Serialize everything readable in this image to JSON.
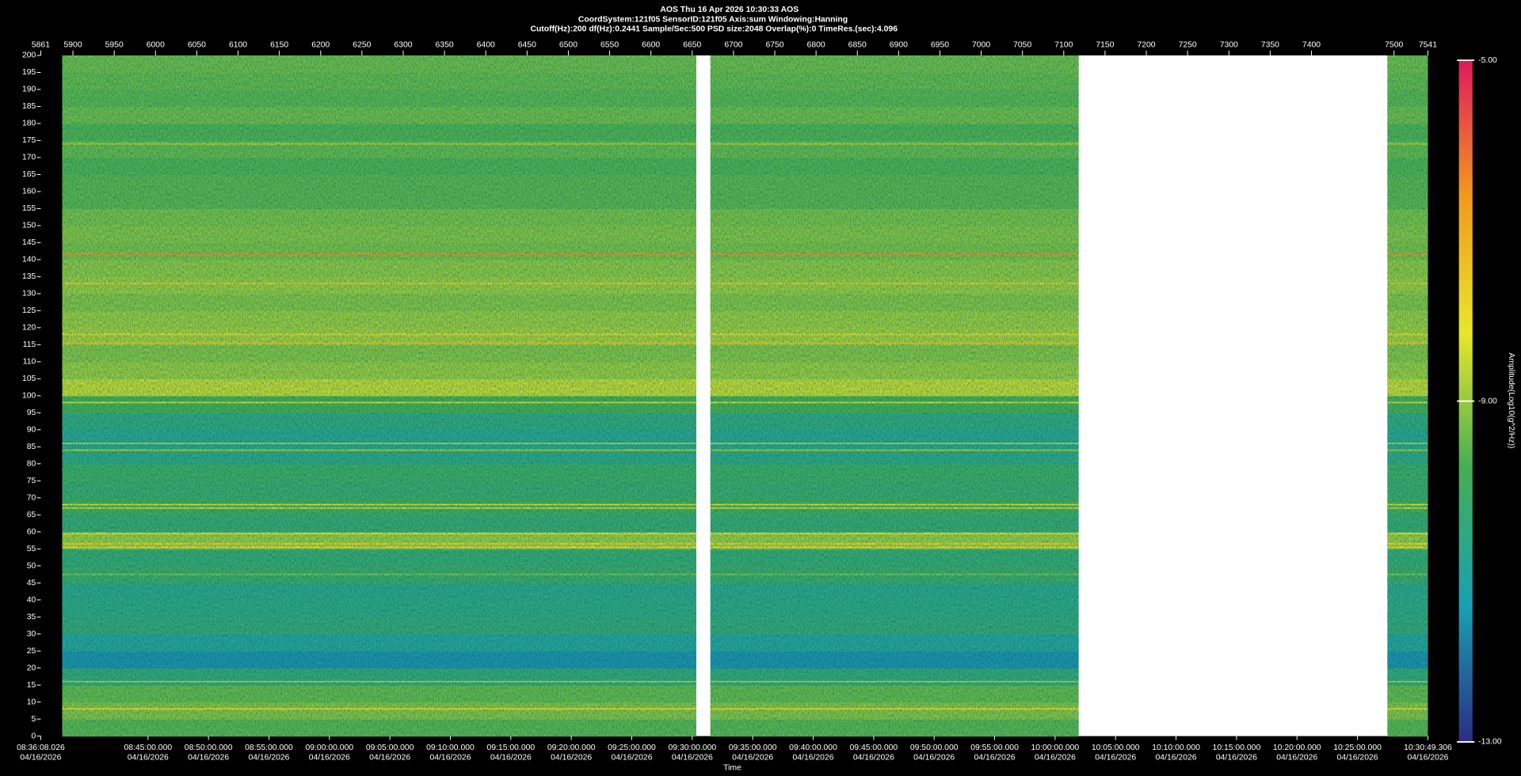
{
  "chart_data": {
    "type": "spectrogram",
    "header": [
      "AOS  Thu 16 Apr 2026 10:30:33  AOS",
      "CoordSystem:121f05    SensorID:121f05    Axis:sum    Windowing:Hanning",
      "Cutoff(Hz):200      df(Hz):0.2441      Sample/Sec:500      PSD size:2048      Overlap(%):0      TimeRes.(sec):4.096"
    ],
    "xlim": [
      5861,
      7541
    ],
    "xticks": [
      5861,
      5900,
      5950,
      6000,
      6050,
      6100,
      6150,
      6200,
      6250,
      6300,
      6350,
      6400,
      6450,
      6500,
      6550,
      6600,
      6650,
      6700,
      6750,
      6800,
      6850,
      6900,
      6950,
      7000,
      7050,
      7100,
      7150,
      7200,
      7250,
      7300,
      7350,
      7400,
      7500,
      7541
    ],
    "ylim": [
      0,
      200
    ],
    "yticks": [
      0,
      5,
      10,
      15,
      20,
      25,
      30,
      35,
      40,
      45,
      50,
      55,
      60,
      65,
      70,
      75,
      80,
      85,
      90,
      95,
      100,
      105,
      110,
      115,
      120,
      125,
      130,
      135,
      140,
      145,
      150,
      155,
      160,
      165,
      170,
      175,
      180,
      185,
      190,
      195,
      200
    ],
    "time_ticks": [
      {
        "time": "08:36:08.026",
        "date": "04/16/2026"
      },
      {
        "time": "08:45:00.000",
        "date": "04/16/2026"
      },
      {
        "time": "08:50:00.000",
        "date": "04/16/2026"
      },
      {
        "time": "08:55:00.000",
        "date": "04/16/2026"
      },
      {
        "time": "09:00:00.000",
        "date": "04/16/2026"
      },
      {
        "time": "09:05:00.000",
        "date": "04/16/2026"
      },
      {
        "time": "09:10:00.000",
        "date": "04/16/2026"
      },
      {
        "time": "09:15:00.000",
        "date": "04/16/2026"
      },
      {
        "time": "09:20:00.000",
        "date": "04/16/2026"
      },
      {
        "time": "09:25:00.000",
        "date": "04/16/2026"
      },
      {
        "time": "09:30:00.000",
        "date": "04/16/2026"
      },
      {
        "time": "09:35:00.000",
        "date": "04/16/2026"
      },
      {
        "time": "09:40:00.000",
        "date": "04/16/2026"
      },
      {
        "time": "09:45:00.000",
        "date": "04/16/2026"
      },
      {
        "time": "09:50:00.000",
        "date": "04/16/2026"
      },
      {
        "time": "09:55:00.000",
        "date": "04/16/2026"
      },
      {
        "time": "10:00:00.000",
        "date": "04/16/2026"
      },
      {
        "time": "10:05:00.000",
        "date": "04/16/2026"
      },
      {
        "time": "10:10:00.000",
        "date": "04/16/2026"
      },
      {
        "time": "10:15:00.000",
        "date": "04/16/2026"
      },
      {
        "time": "10:20:00.000",
        "date": "04/16/2026"
      },
      {
        "time": "10:25:00.000",
        "date": "04/16/2026"
      },
      {
        "time": "10:30:49.306",
        "date": "04/16/2026"
      }
    ],
    "xlabel": "Time",
    "data_spans": [
      [
        5887,
        6655
      ],
      [
        6672,
        7118
      ],
      [
        7492,
        7541
      ]
    ],
    "heatmap": {
      "ybins": [
        0,
        5,
        10,
        15,
        20,
        25,
        30,
        35,
        40,
        45,
        50,
        55,
        60,
        65,
        70,
        75,
        80,
        85,
        90,
        95,
        100,
        105,
        110,
        115,
        120,
        125,
        130,
        135,
        140,
        145,
        150,
        155,
        160,
        165,
        170,
        175,
        180,
        185,
        190,
        195,
        200
      ],
      "values": [
        -9.6,
        -9.2,
        -9.5,
        -10.4,
        -11.6,
        -11.0,
        -10.4,
        -10.6,
        -10.7,
        -10.2,
        -10.3,
        -9.0,
        -10.3,
        -10.0,
        -10.2,
        -10.1,
        -10.6,
        -10.8,
        -10.5,
        -9.8,
        -8.6,
        -9.0,
        -9.2,
        -8.9,
        -9.0,
        -9.2,
        -9.0,
        -9.1,
        -9.3,
        -9.2,
        -9.3,
        -9.6,
        -9.6,
        -9.7,
        -9.5,
        -9.7,
        -9.4,
        -9.6,
        -9.5,
        -9.4
      ]
    },
    "lines": [
      {
        "freq": 174,
        "value": -8.8
      },
      {
        "freq": 141.5,
        "value": -6.5
      },
      {
        "freq": 133,
        "value": -7.5
      },
      {
        "freq": 118,
        "value": -8
      },
      {
        "freq": 115.5,
        "value": -7.5
      },
      {
        "freq": 98,
        "value": -8.5
      },
      {
        "freq": 86,
        "value": -8.8
      },
      {
        "freq": 84,
        "value": -8.8
      },
      {
        "freq": 68,
        "value": -8.3
      },
      {
        "freq": 67,
        "value": -8.5
      },
      {
        "freq": 59.5,
        "value": -8
      },
      {
        "freq": 56.5,
        "value": -7.8
      },
      {
        "freq": 55.5,
        "value": -8
      },
      {
        "freq": 47.5,
        "value": -9.2
      },
      {
        "freq": 16,
        "value": -8.8
      },
      {
        "freq": 8,
        "value": -8
      }
    ],
    "clim": [
      -13,
      -5
    ],
    "cticks": [
      {
        "value": -5,
        "label": "-5.00"
      },
      {
        "value": -9,
        "label": "-9.00"
      },
      {
        "value": -13,
        "label": "-13.00"
      }
    ],
    "colorbar_label": "Amplitude(Log10(g^2/Hz))",
    "colorscale": [
      "#2a2d84",
      "#1aa0b2",
      "#44ad55",
      "#e8e62c",
      "#f29a1e",
      "#e0185c"
    ]
  }
}
